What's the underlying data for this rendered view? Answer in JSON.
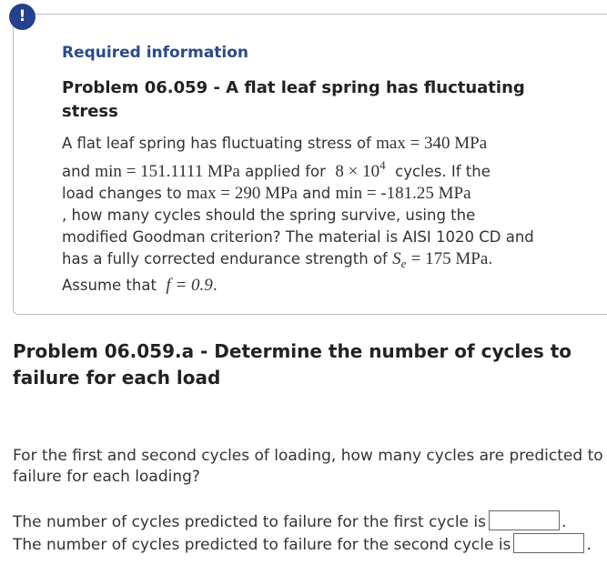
{
  "alert_icon": "!",
  "info": {
    "heading": "Required information",
    "problem_title": "Problem 06.059 - A flat leaf spring has fluctuating stress",
    "body": [
      "A flat leaf spring has fluctuating stress of",
      "max = 340 MPa",
      "and",
      "min = 151.1111 MPa",
      "applied for",
      "8 × 10",
      "4",
      "cycles. If the",
      "load changes to",
      "max = 290 MPa",
      "and",
      "min = -181.25 MPa",
      ", how many cycles should the spring survive, using the",
      "modified Goodman criterion? The material is AISI 1020 CD and",
      "has a fully corrected endurance strength of",
      "S",
      "e",
      "= 175 MPa",
      ".",
      "Assume that",
      "f = 0.9",
      "."
    ]
  },
  "part": {
    "title": "Problem 06.059.a - Determine the number of cycles to failure for each load",
    "question": "For the first and second cycles of loading, how many cycles are predicted to failure for each loading?",
    "answers": [
      {
        "label": "The number of cycles predicted to failure for the first cycle is",
        "end": "."
      },
      {
        "label": "The number of cycles predicted to failure for the second cycle is",
        "end": "."
      }
    ]
  }
}
